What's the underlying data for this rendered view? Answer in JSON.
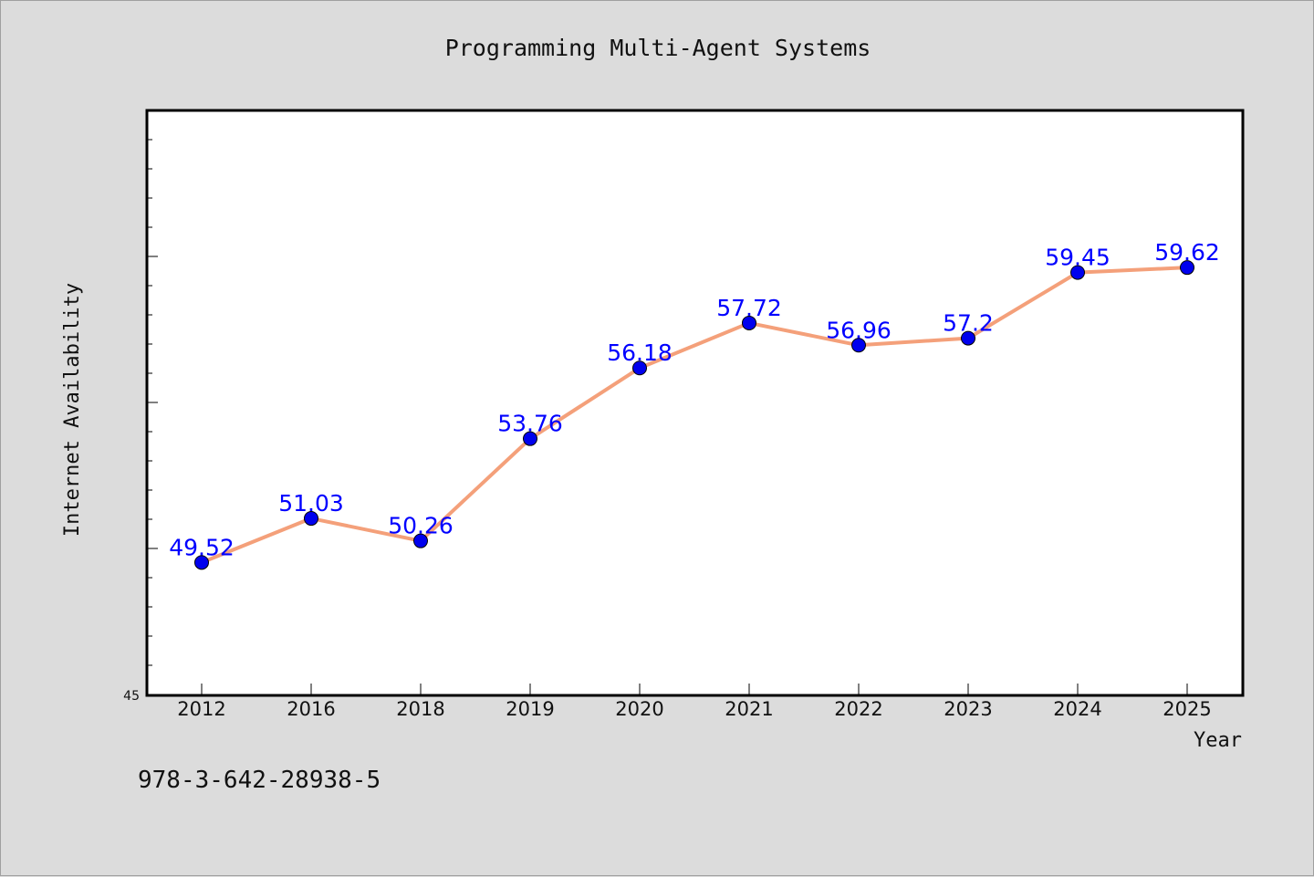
{
  "chart_data": {
    "type": "line",
    "title": "Programming Multi-Agent Systems",
    "xlabel": "Year",
    "ylabel": "Internet Availability",
    "categories": [
      "2012",
      "2016",
      "2018",
      "2019",
      "2020",
      "2021",
      "2022",
      "2023",
      "2024",
      "2025"
    ],
    "series": [
      {
        "values": [
          49.52,
          51.03,
          50.26,
          53.76,
          56.18,
          57.72,
          56.96,
          57.2,
          59.45,
          59.62
        ],
        "data_labels": [
          "49.52",
          "51.03",
          "50.26",
          "53.76",
          "56.18",
          "57.72",
          "56.96",
          "57.2",
          "59.45",
          "59.62"
        ]
      }
    ],
    "yticks": [
      "45"
    ],
    "ylim": [
      45,
      65
    ],
    "grid": false,
    "colors": {
      "line": "#f4a07a",
      "marker": "#0000ee",
      "label": "#0000ff",
      "plot_bg": "#ffffff",
      "page_bg": "#dcdcdc"
    }
  },
  "footer": {
    "isbn": "978-3-642-28938-5"
  }
}
